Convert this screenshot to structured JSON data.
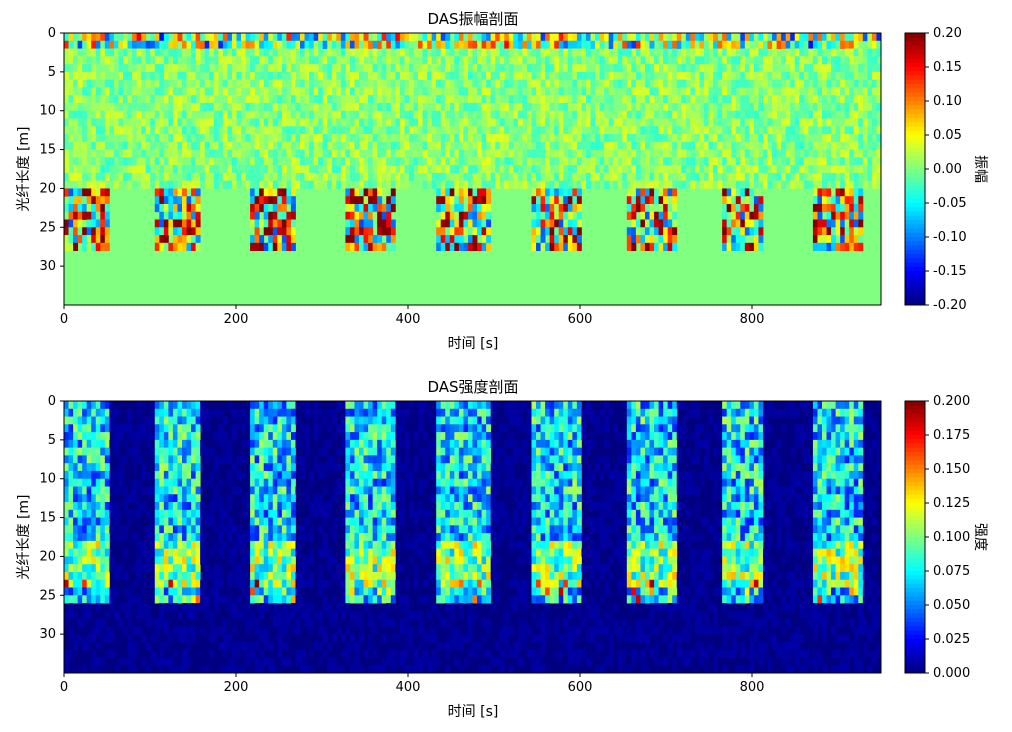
{
  "chart_data": [
    {
      "type": "heatmap",
      "title": "DAS振幅剖面",
      "xlabel": "时间 [s]",
      "ylabel": "光纤长度 [m]",
      "colorbar_label": "振幅",
      "colormap": "jet",
      "xlim": [
        0,
        950
      ],
      "ylim": [
        35,
        0
      ],
      "xticks": [
        "0",
        "200",
        "400",
        "600",
        "800"
      ],
      "yticks": [
        "0",
        "5",
        "10",
        "15",
        "20",
        "25",
        "30"
      ],
      "clim": [
        -0.2,
        0.2
      ],
      "colorbar_ticks": [
        "0.20",
        "0.15",
        "0.10",
        "0.05",
        "0.00",
        "-0.05",
        "-0.10",
        "-0.15",
        "-0.20"
      ],
      "background_value": 0.0,
      "event_windows_s": [
        [
          0,
          55
        ],
        [
          105,
          160
        ],
        [
          215,
          270
        ],
        [
          325,
          385
        ],
        [
          435,
          495
        ],
        [
          545,
          600
        ],
        [
          655,
          710
        ],
        [
          765,
          815
        ],
        [
          870,
          930
        ]
      ],
      "event_depth_m": [
        20,
        28
      ]
    },
    {
      "type": "heatmap",
      "title": "DAS强度剖面",
      "xlabel": "时间 [s]",
      "ylabel": "光纤长度 [m]",
      "colorbar_label": "强度",
      "colormap": "jet",
      "xlim": [
        0,
        950
      ],
      "ylim": [
        35,
        0
      ],
      "xticks": [
        "0",
        "200",
        "400",
        "600",
        "800"
      ],
      "yticks": [
        "0",
        "5",
        "10",
        "15",
        "20",
        "25",
        "30"
      ],
      "clim": [
        0.0,
        0.2
      ],
      "colorbar_ticks": [
        "0.200",
        "0.175",
        "0.150",
        "0.125",
        "0.100",
        "0.075",
        "0.050",
        "0.025",
        "0.000"
      ],
      "background_value": 0.0,
      "event_windows_s": [
        [
          0,
          55
        ],
        [
          105,
          160
        ],
        [
          215,
          270
        ],
        [
          325,
          385
        ],
        [
          435,
          495
        ],
        [
          545,
          600
        ],
        [
          655,
          710
        ],
        [
          765,
          815
        ],
        [
          870,
          930
        ]
      ],
      "event_depth_m": [
        0,
        26
      ]
    }
  ]
}
